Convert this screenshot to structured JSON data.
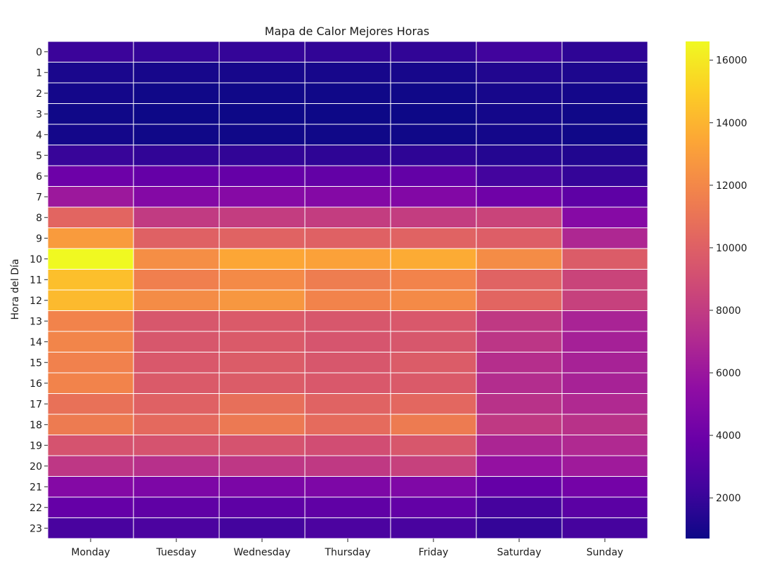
{
  "chart_data": {
    "type": "heatmap",
    "title": "Mapa de Calor Mejores Horas",
    "xlabel": "",
    "ylabel": "Hora del Día",
    "x_categories": [
      "Monday",
      "Tuesday",
      "Wednesday",
      "Thursday",
      "Friday",
      "Saturday",
      "Sunday"
    ],
    "y_categories": [
      "0",
      "1",
      "2",
      "3",
      "4",
      "5",
      "6",
      "7",
      "8",
      "9",
      "10",
      "11",
      "12",
      "13",
      "14",
      "15",
      "16",
      "17",
      "18",
      "19",
      "20",
      "21",
      "22",
      "23"
    ],
    "values": [
      [
        2100,
        1900,
        1900,
        1800,
        1800,
        2300,
        1700
      ],
      [
        1100,
        1000,
        1000,
        1000,
        1000,
        1300,
        1200
      ],
      [
        900,
        800,
        800,
        800,
        800,
        1000,
        900
      ],
      [
        800,
        700,
        700,
        700,
        700,
        900,
        800
      ],
      [
        900,
        800,
        800,
        800,
        800,
        900,
        800
      ],
      [
        2000,
        1800,
        1800,
        1700,
        1700,
        1400,
        1300
      ],
      [
        4000,
        3700,
        3700,
        3600,
        3600,
        2400,
        1900
      ],
      [
        6100,
        5000,
        5100,
        5000,
        4900,
        4100,
        3400
      ],
      [
        10300,
        8000,
        8100,
        8100,
        8100,
        8500,
        5100
      ],
      [
        12900,
        10100,
        10200,
        10100,
        10200,
        9900,
        6900
      ],
      [
        16600,
        12300,
        13400,
        13200,
        13600,
        12200,
        9800
      ],
      [
        14400,
        11600,
        12100,
        11500,
        11800,
        10200,
        8500
      ],
      [
        14200,
        12200,
        12700,
        11800,
        12100,
        10300,
        8300
      ],
      [
        11800,
        9500,
        9700,
        9500,
        9600,
        7900,
        6700
      ],
      [
        11900,
        9500,
        9700,
        9400,
        9500,
        7700,
        6500
      ],
      [
        11700,
        9600,
        9800,
        9500,
        9800,
        7300,
        6600
      ],
      [
        11800,
        9700,
        9800,
        9600,
        9700,
        7200,
        6600
      ],
      [
        10900,
        10100,
        10800,
        10200,
        10400,
        7500,
        7000
      ],
      [
        11400,
        10500,
        11300,
        10600,
        11400,
        7900,
        7500
      ],
      [
        9300,
        9300,
        9300,
        9000,
        9500,
        6800,
        7000
      ],
      [
        7800,
        7400,
        7800,
        7900,
        8300,
        5700,
        6200
      ],
      [
        5000,
        4700,
        4600,
        4700,
        4800,
        3700,
        4300
      ],
      [
        3700,
        3500,
        3400,
        3500,
        3600,
        2500,
        3300
      ],
      [
        2600,
        2700,
        2400,
        2700,
        2600,
        1900,
        2500
      ]
    ],
    "colorbar": {
      "min": 700,
      "max": 16600,
      "ticks": [
        2000,
        4000,
        6000,
        8000,
        10000,
        12000,
        14000,
        16000
      ],
      "colormap": "plasma"
    },
    "grid": true
  }
}
